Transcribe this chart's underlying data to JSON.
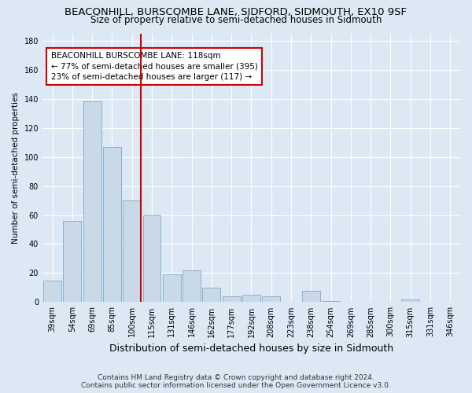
{
  "title": "BEACONHILL, BURSCOMBE LANE, SIDFORD, SIDMOUTH, EX10 9SF",
  "subtitle": "Size of property relative to semi-detached houses in Sidmouth",
  "xlabel": "Distribution of semi-detached houses by size in Sidmouth",
  "ylabel": "Number of semi-detached properties",
  "footnote1": "Contains HM Land Registry data © Crown copyright and database right 2024.",
  "footnote2": "Contains public sector information licensed under the Open Government Licence v3.0.",
  "annotation_title": "BEACONHILL BURSCOMBE LANE: 118sqm",
  "annotation_line1": "← 77% of semi-detached houses are smaller (395)",
  "annotation_line2": "23% of semi-detached houses are larger (117) →",
  "categories": [
    "39sqm",
    "54sqm",
    "69sqm",
    "85sqm",
    "100sqm",
    "115sqm",
    "131sqm",
    "146sqm",
    "162sqm",
    "177sqm",
    "192sqm",
    "208sqm",
    "223sqm",
    "238sqm",
    "254sqm",
    "269sqm",
    "285sqm",
    "300sqm",
    "315sqm",
    "331sqm",
    "346sqm"
  ],
  "values": [
    15,
    56,
    138,
    107,
    70,
    60,
    19,
    22,
    10,
    4,
    5,
    4,
    0,
    8,
    1,
    0,
    0,
    0,
    2,
    0,
    0
  ],
  "bar_color": "#c9d9e8",
  "bar_edge_color": "#7aaaca",
  "vline_color": "#cc0000",
  "vline_x_index": 4,
  "ylim": [
    0,
    185
  ],
  "yticks": [
    0,
    20,
    40,
    60,
    80,
    100,
    120,
    140,
    160,
    180
  ],
  "background_color": "#dce9f5",
  "plot_background": "#dce9f5",
  "title_fontsize": 9.5,
  "subtitle_fontsize": 8.5,
  "xlabel_fontsize": 9,
  "ylabel_fontsize": 7.5,
  "tick_fontsize": 7,
  "footnote_fontsize": 6.5
}
